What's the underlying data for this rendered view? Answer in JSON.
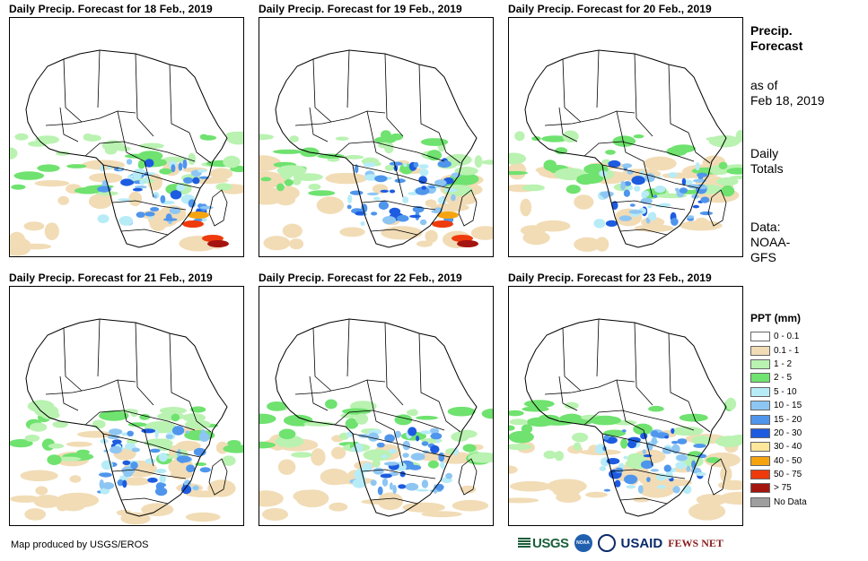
{
  "panels": [
    {
      "title": "Daily Precip. Forecast for 18 Feb., 2019"
    },
    {
      "title": "Daily Precip. Forecast for 19 Feb., 2019"
    },
    {
      "title": "Daily Precip. Forecast for 20 Feb., 2019"
    },
    {
      "title": "Daily Precip. Forecast for 21 Feb., 2019"
    },
    {
      "title": "Daily Precip. Forecast for 22 Feb., 2019"
    },
    {
      "title": "Daily Precip. Forecast for 23 Feb., 2019"
    }
  ],
  "side": {
    "title_line1": "Precip.",
    "title_line2": "Forecast",
    "asof_line1": "as of",
    "asof_line2": "Feb 18, 2019",
    "totals_line1": "Daily",
    "totals_line2": "Totals",
    "data_line1": "Data:",
    "data_line2": "NOAA-",
    "data_line3": "GFS"
  },
  "legend": {
    "title": "PPT (mm)",
    "items": [
      {
        "label": "0 - 0.1",
        "color": "#ffffff"
      },
      {
        "label": "0.1 - 1",
        "color": "#f1dcb6"
      },
      {
        "label": "1 - 2",
        "color": "#b9f2b1"
      },
      {
        "label": "2 - 5",
        "color": "#6fe26f"
      },
      {
        "label": "5 - 10",
        "color": "#b7ecf7"
      },
      {
        "label": "10 - 15",
        "color": "#8ec6f3"
      },
      {
        "label": "15 - 20",
        "color": "#4f95ec"
      },
      {
        "label": "20 - 30",
        "color": "#1d5ce0"
      },
      {
        "label": "30 - 40",
        "color": "#fce79a"
      },
      {
        "label": "40 - 50",
        "color": "#f5a410"
      },
      {
        "label": "50 - 75",
        "color": "#ee3a0c"
      },
      {
        "label": "> 75",
        "color": "#a5150f"
      },
      {
        "label": "No Data",
        "color": "#9e9e9e"
      }
    ]
  },
  "footer": {
    "credit": "Map produced by USGS/EROS",
    "logo_usgs": "USGS",
    "logo_noaa": "NOAA",
    "logo_usaid": "USAID",
    "logo_fews": "FEWS NET"
  }
}
